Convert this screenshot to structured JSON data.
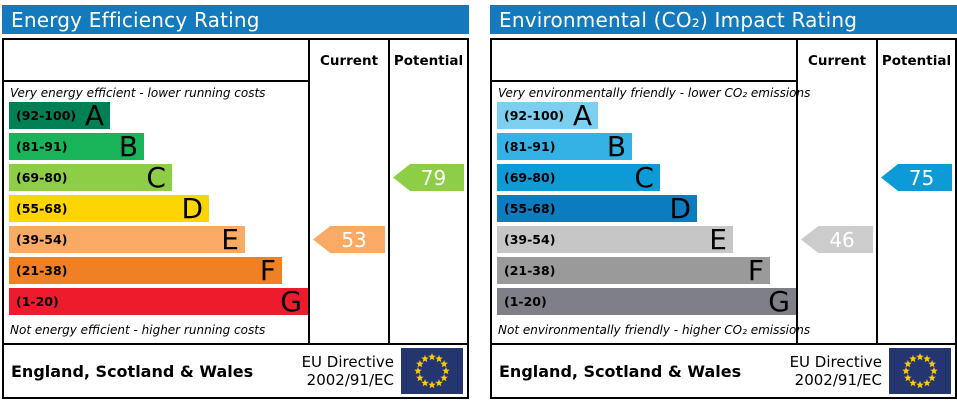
{
  "accent_header_color": "#127abd",
  "eu_flag_colors": {
    "field": "#24356f",
    "stars": "#ffcc00"
  },
  "panels": [
    {
      "title": "Energy Efficiency Rating",
      "columns": {
        "current": "Current",
        "potential": "Potential"
      },
      "top_note": "Very energy efficient - lower running costs",
      "bottom_note": "Not energy efficient - higher running costs",
      "bands": [
        {
          "letter": "A",
          "range": "(92-100)",
          "color": "#008054",
          "width_pct": 33.8
        },
        {
          "letter": "B",
          "range": "(81-91)",
          "color": "#19b459",
          "width_pct": 45.2
        },
        {
          "letter": "C",
          "range": "(69-80)",
          "color": "#8dce46",
          "width_pct": 54.5
        },
        {
          "letter": "D",
          "range": "(55-68)",
          "color": "#ffd500",
          "width_pct": 66.9
        },
        {
          "letter": "E",
          "range": "(39-54)",
          "color": "#fbaa65",
          "width_pct": 78.9
        },
        {
          "letter": "F",
          "range": "(21-38)",
          "color": "#ef8023",
          "width_pct": 91.3
        },
        {
          "letter": "G",
          "range": "(1-20)",
          "color": "#ed1c2c",
          "width_pct": 100
        }
      ],
      "current": {
        "value": "53",
        "band": "E",
        "color": "#fbaa65"
      },
      "potential": {
        "value": "79",
        "band": "C",
        "color": "#8dce46"
      },
      "footer": {
        "region": "England, Scotland & Wales",
        "directive_line1": "EU Directive",
        "directive_line2": "2002/91/EC",
        "flag": "eu-flag"
      }
    },
    {
      "title": "Environmental (CO₂) Impact Rating",
      "columns": {
        "current": "Current",
        "potential": "Potential"
      },
      "top_note": "Very environmentally friendly - lower CO₂ emissions",
      "bottom_note": "Not environmentally friendly - higher CO₂ emissions",
      "bands": [
        {
          "letter": "A",
          "range": "(92-100)",
          "color": "#7dcff0",
          "width_pct": 33.8
        },
        {
          "letter": "B",
          "range": "(81-91)",
          "color": "#35b2e5",
          "width_pct": 45.2
        },
        {
          "letter": "C",
          "range": "(69-80)",
          "color": "#0c9bd7",
          "width_pct": 54.5
        },
        {
          "letter": "D",
          "range": "(55-68)",
          "color": "#0b7cc0",
          "width_pct": 66.9
        },
        {
          "letter": "E",
          "range": "(39-54)",
          "color": "#c6c6c6",
          "width_pct": 78.9
        },
        {
          "letter": "F",
          "range": "(21-38)",
          "color": "#9a9a9a",
          "width_pct": 91.3
        },
        {
          "letter": "G",
          "range": "(1-20)",
          "color": "#7f7f87",
          "width_pct": 100
        }
      ],
      "current": {
        "value": "46",
        "band": "E",
        "color": "#cccccc"
      },
      "potential": {
        "value": "75",
        "band": "C",
        "color": "#0c9bd7"
      },
      "footer": {
        "region": "England, Scotland & Wales",
        "directive_line1": "EU Directive",
        "directive_line2": "2002/91/EC",
        "flag": "eu-flag"
      }
    }
  ],
  "chart_data": [
    {
      "type": "bar",
      "title": "Energy Efficiency Rating",
      "subtitle_top": "Very energy efficient - lower running costs",
      "subtitle_bottom": "Not energy efficient - higher running costs",
      "categories": [
        "A",
        "B",
        "C",
        "D",
        "E",
        "F",
        "G"
      ],
      "band_ranges": [
        [
          92,
          100
        ],
        [
          81,
          91
        ],
        [
          69,
          80
        ],
        [
          55,
          68
        ],
        [
          39,
          54
        ],
        [
          21,
          38
        ],
        [
          1,
          20
        ]
      ],
      "series": [
        {
          "name": "Current",
          "value": 53,
          "band": "E"
        },
        {
          "name": "Potential",
          "value": 79,
          "band": "C"
        }
      ],
      "scale": [
        1,
        100
      ],
      "legend_position": "right-columns",
      "region": "England, Scotland & Wales",
      "directive": "EU Directive 2002/91/EC"
    },
    {
      "type": "bar",
      "title": "Environmental (CO₂) Impact Rating",
      "subtitle_top": "Very environmentally friendly - lower CO₂ emissions",
      "subtitle_bottom": "Not environmentally friendly - higher CO₂ emissions",
      "categories": [
        "A",
        "B",
        "C",
        "D",
        "E",
        "F",
        "G"
      ],
      "band_ranges": [
        [
          92,
          100
        ],
        [
          81,
          91
        ],
        [
          69,
          80
        ],
        [
          55,
          68
        ],
        [
          39,
          54
        ],
        [
          21,
          38
        ],
        [
          1,
          20
        ]
      ],
      "series": [
        {
          "name": "Current",
          "value": 46,
          "band": "E"
        },
        {
          "name": "Potential",
          "value": 75,
          "band": "C"
        }
      ],
      "scale": [
        1,
        100
      ],
      "legend_position": "right-columns",
      "region": "England, Scotland & Wales",
      "directive": "EU Directive 2002/91/EC"
    }
  ]
}
